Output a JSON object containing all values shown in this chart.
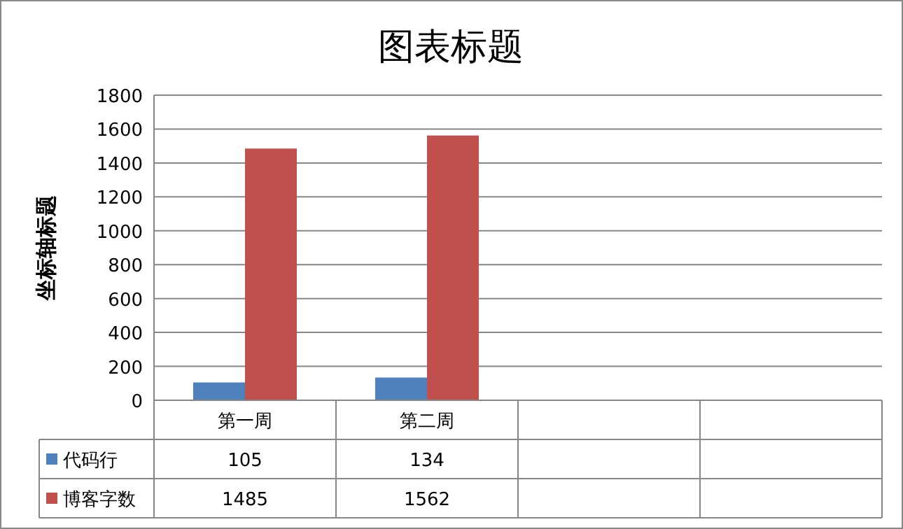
{
  "chart_data": {
    "type": "bar",
    "title": "图表标题",
    "ylabel": "坐标轴标题",
    "categories": [
      "第一周",
      "第二周",
      null,
      null
    ],
    "series": [
      {
        "name": "代码行",
        "color": "#4f81bd",
        "values": [
          105,
          134,
          null,
          null
        ]
      },
      {
        "name": "博客字数",
        "color": "#c0504d",
        "values": [
          1485,
          1562,
          null,
          null
        ]
      }
    ],
    "ylim": [
      0,
      1800
    ],
    "yticks": [
      0,
      200,
      400,
      600,
      800,
      1000,
      1200,
      1400,
      1600,
      1800
    ],
    "grid": "y",
    "data_labels": true,
    "legend": "bottom"
  }
}
